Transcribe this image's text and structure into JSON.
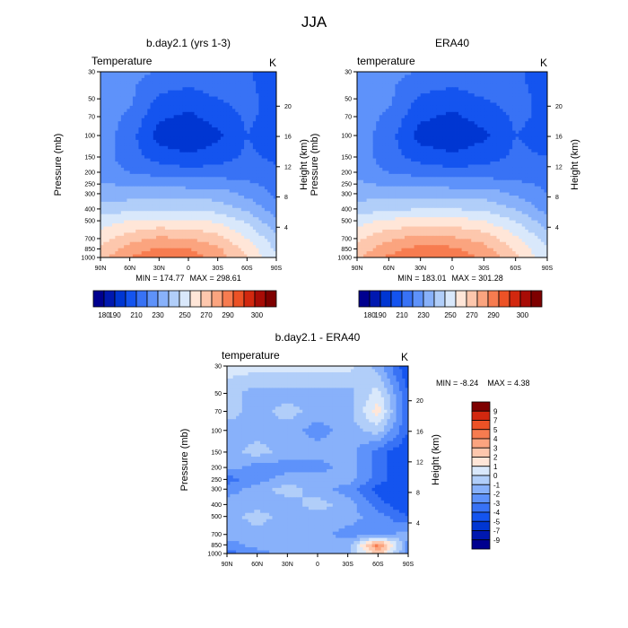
{
  "page_title": "JJA",
  "pressure_levels": [
    30,
    50,
    70,
    100,
    150,
    200,
    250,
    300,
    400,
    500,
    700,
    850,
    1000
  ],
  "height_ticks": [
    4,
    8,
    12,
    16,
    20
  ],
  "lat_ticks": [
    "90N",
    "60N",
    "30N",
    "0",
    "30S",
    "60S",
    "90S"
  ],
  "chart_data": [
    {
      "type": "heatmap",
      "title": "b.day2.1 (yrs 1-3)",
      "variable": "Temperature",
      "units": "K",
      "ylabel": "Pressure (mb)",
      "y2label": "Height (km)",
      "x": [
        "90N",
        "60N",
        "30N",
        "0",
        "30S",
        "60S",
        "90S"
      ],
      "y": [
        30,
        50,
        70,
        100,
        150,
        200,
        250,
        300,
        400,
        500,
        700,
        850,
        1000
      ],
      "values": [
        [
          222,
          222,
          220,
          218,
          220,
          212,
          200
        ],
        [
          226,
          222,
          208,
          204,
          210,
          214,
          204
        ],
        [
          226,
          218,
          202,
          198,
          204,
          212,
          206
        ],
        [
          226,
          214,
          196,
          190,
          198,
          210,
          204
        ],
        [
          226,
          214,
          206,
          202,
          206,
          212,
          208
        ],
        [
          225,
          220,
          216,
          214,
          214,
          216,
          212
        ],
        [
          231,
          228,
          228,
          226,
          226,
          222,
          216
        ],
        [
          235,
          235,
          235,
          236,
          235,
          227,
          218
        ],
        [
          244,
          247,
          248,
          248,
          246,
          238,
          224
        ],
        [
          255,
          260,
          262,
          262,
          258,
          248,
          232
        ],
        [
          266,
          276,
          282,
          280,
          274,
          260,
          244
        ],
        [
          272,
          284,
          292,
          290,
          282,
          266,
          248
        ],
        [
          276,
          290,
          298,
          296,
          286,
          270,
          252
        ]
      ],
      "min_label": "MIN = 174.77",
      "max_label": "MAX = 298.61",
      "colorbar": {
        "orientation": "horizontal",
        "levels": [
          180,
          190,
          200,
          210,
          220,
          230,
          240,
          250,
          260,
          270,
          280,
          290,
          300
        ],
        "labels": [
          "180",
          "190",
          "210",
          "230",
          "250",
          "270",
          "290",
          "300"
        ],
        "colors": [
          "#00008f",
          "#0018b0",
          "#0036d2",
          "#1454ef",
          "#3872f5",
          "#5e92fa",
          "#88b1fa",
          "#b1cef9",
          "#d9e8fb",
          "#ffe6d8",
          "#fdc7ad",
          "#fba47f",
          "#f77c50",
          "#ec5226",
          "#d2280f",
          "#a80c06",
          "#7e0000"
        ]
      }
    },
    {
      "type": "heatmap",
      "title": "ERA40",
      "variable": "temperature",
      "units": "K",
      "ylabel": "Pressure (mb)",
      "y2label": "Height (km)",
      "x": [
        "90N",
        "60N",
        "30N",
        "0",
        "30S",
        "60S",
        "90S"
      ],
      "y": [
        30,
        50,
        70,
        100,
        150,
        200,
        250,
        300,
        400,
        500,
        700,
        850,
        1000
      ],
      "values": [
        [
          222,
          222,
          220,
          218,
          220,
          214,
          200
        ],
        [
          226,
          222,
          208,
          204,
          210,
          214,
          206
        ],
        [
          226,
          218,
          202,
          198,
          204,
          212,
          208
        ],
        [
          226,
          214,
          196,
          192,
          198,
          210,
          206
        ],
        [
          226,
          214,
          206,
          202,
          206,
          212,
          210
        ],
        [
          226,
          220,
          216,
          214,
          214,
          216,
          214
        ],
        [
          232,
          228,
          228,
          226,
          226,
          222,
          218
        ],
        [
          236,
          236,
          236,
          236,
          236,
          228,
          220
        ],
        [
          244,
          248,
          250,
          250,
          248,
          240,
          226
        ],
        [
          256,
          262,
          264,
          264,
          260,
          250,
          234
        ],
        [
          268,
          278,
          284,
          282,
          276,
          262,
          246
        ],
        [
          274,
          286,
          294,
          292,
          284,
          268,
          250
        ],
        [
          278,
          292,
          300,
          298,
          288,
          272,
          254
        ]
      ],
      "min_label": "MIN = 183.01",
      "max_label": "MAX = 301.28",
      "colorbar": {
        "orientation": "horizontal",
        "levels": [
          180,
          190,
          200,
          210,
          220,
          230,
          240,
          250,
          260,
          270,
          280,
          290,
          300
        ],
        "labels": [
          "180",
          "190",
          "210",
          "230",
          "250",
          "270",
          "290",
          "300"
        ],
        "colors": [
          "#00008f",
          "#0018b0",
          "#0036d2",
          "#1454ef",
          "#3872f5",
          "#5e92fa",
          "#88b1fa",
          "#b1cef9",
          "#d9e8fb",
          "#ffe6d8",
          "#fdc7ad",
          "#fba47f",
          "#f77c50",
          "#ec5226",
          "#d2280f",
          "#a80c06",
          "#7e0000"
        ]
      }
    },
    {
      "type": "heatmap",
      "title": "b.day2.1 - ERA40",
      "variable": "temperature",
      "units": "K",
      "ylabel": "Pressure (mb)",
      "y2label": "Height (km)",
      "x": [
        "90N",
        "60N",
        "30N",
        "0",
        "30S",
        "60S",
        "90S"
      ],
      "y": [
        30,
        50,
        70,
        100,
        150,
        200,
        250,
        300,
        400,
        500,
        700,
        850,
        1000
      ],
      "values": [
        [
          0.5,
          0.5,
          0.5,
          0.5,
          0.5,
          -1.5,
          -5
        ],
        [
          -0.5,
          -1.5,
          -1.5,
          -1.5,
          -1.5,
          0.5,
          -4
        ],
        [
          -0.5,
          -1.5,
          -0.5,
          -1.5,
          -1.5,
          1.5,
          -4
        ],
        [
          -1.5,
          -1.5,
          -1.5,
          -2.5,
          -1.5,
          -0.5,
          -4
        ],
        [
          -1.5,
          -0.5,
          -1.5,
          -1.5,
          -1.5,
          -3.5,
          -5
        ],
        [
          -1.5,
          -2.5,
          -2.5,
          -2.5,
          -1.5,
          -3.5,
          -5
        ],
        [
          -3.5,
          -2.5,
          -1.5,
          -1.5,
          -1.5,
          -3.5,
          -5
        ],
        [
          -2.5,
          -1.5,
          -0.5,
          -1.5,
          -2.5,
          -4.5,
          -5
        ],
        [
          -1.5,
          -1.5,
          -1.5,
          -0.5,
          -1.5,
          -3.5,
          -5
        ],
        [
          -1.5,
          -0.5,
          -1.5,
          -1.5,
          -1.5,
          -2.5,
          -4
        ],
        [
          -1.5,
          -1.5,
          -1.5,
          -1.5,
          -2.5,
          -2.5,
          -1.5
        ],
        [
          -2.5,
          -1.5,
          -1.5,
          -1.5,
          -1.5,
          4.5,
          -2.5
        ],
        [
          -3.5,
          -2.5,
          -1.5,
          -1.5,
          -1.5,
          2.5,
          -2.5
        ]
      ],
      "min_label": "MIN =   -8.24",
      "max_label": "MAX =    4.38",
      "colorbar": {
        "orientation": "vertical",
        "levels": [
          -9,
          -7,
          -5,
          -4,
          -3,
          -2,
          -1,
          0,
          1,
          2,
          3,
          4,
          5,
          7,
          9
        ],
        "labels": [
          "-9",
          "-7",
          "-5",
          "-4",
          "-3",
          "-2",
          "-1",
          "0",
          "1",
          "2",
          "3",
          "4",
          "5",
          "7",
          "9"
        ],
        "colors": [
          "#00008f",
          "#0018b0",
          "#0036d2",
          "#1454ef",
          "#3872f5",
          "#5e92fa",
          "#88b1fa",
          "#b1cef9",
          "#d9e8fb",
          "#ffe6d8",
          "#fdc7ad",
          "#fba47f",
          "#f77c50",
          "#ec5226",
          "#d2280f",
          "#7e0000"
        ]
      }
    }
  ]
}
